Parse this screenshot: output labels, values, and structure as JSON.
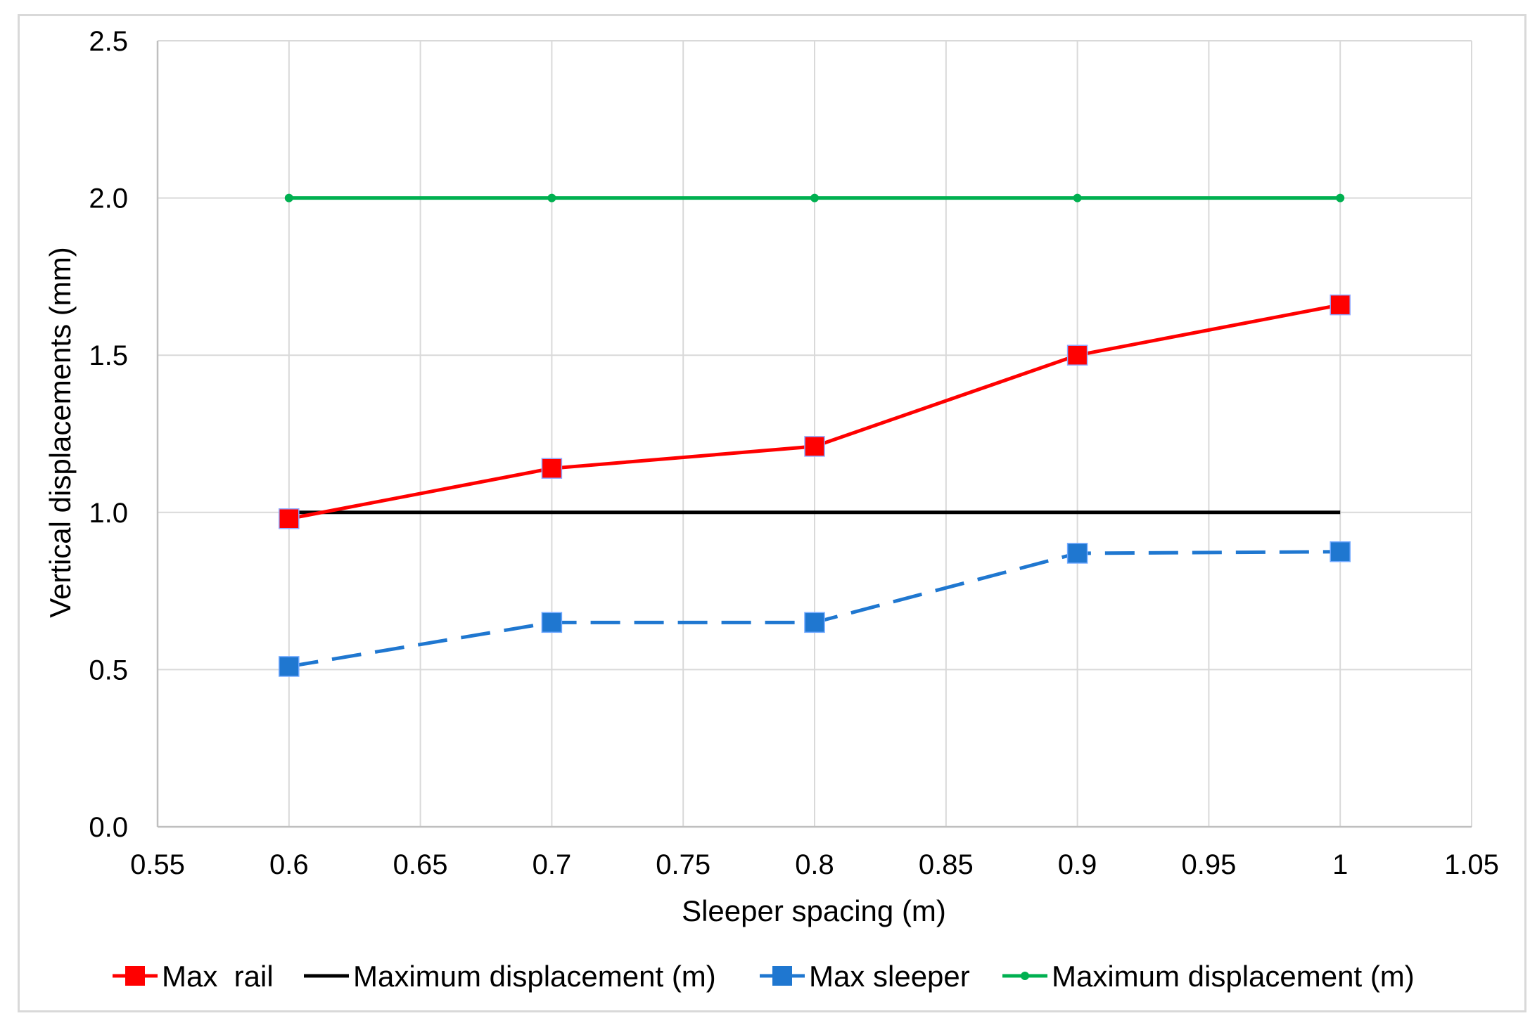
{
  "chart_data": {
    "type": "line",
    "title": "",
    "xlabel": "Sleeper spacing (m)",
    "ylabel": "Vertical displacements (mm)",
    "xlim": [
      0.55,
      1.05
    ],
    "ylim": [
      0.0,
      2.5
    ],
    "x_ticks": [
      0.55,
      0.6,
      0.65,
      0.7,
      0.75,
      0.8,
      0.85,
      0.9,
      0.95,
      1.0,
      1.05
    ],
    "x_tick_labels": [
      "0.55",
      "0.6",
      "0.65",
      "0.7",
      "0.75",
      "0.8",
      "0.85",
      "0.9",
      "0.95",
      "1",
      "1.05"
    ],
    "y_ticks": [
      0.0,
      0.5,
      1.0,
      1.5,
      2.0,
      2.5
    ],
    "y_tick_labels": [
      "0.0",
      "0.5",
      "1.0",
      "1.5",
      "2.0",
      "2.5"
    ],
    "grid": true,
    "legend_position": "bottom",
    "series": [
      {
        "name": "Max  rail",
        "color": "#ff0000",
        "style": "solid",
        "marker": "square",
        "x": [
          0.6,
          0.7,
          0.8,
          0.9,
          1.0
        ],
        "values": [
          0.98,
          1.14,
          1.21,
          1.5,
          1.66
        ]
      },
      {
        "name": "Maximum displacement (m)",
        "color": "#000000",
        "style": "solid",
        "marker": "none",
        "x": [
          0.6,
          1.0
        ],
        "values": [
          1.0,
          1.0
        ]
      },
      {
        "name": "Max sleeper",
        "color": "#1f77d0",
        "style": "dashed",
        "marker": "square",
        "x": [
          0.6,
          0.7,
          0.8,
          0.9,
          1.0
        ],
        "values": [
          0.51,
          0.65,
          0.65,
          0.87,
          0.875
        ]
      },
      {
        "name": "Maximum displacement (m)",
        "color": "#00b050",
        "style": "solid",
        "marker": "dot",
        "x": [
          0.6,
          0.7,
          0.8,
          0.9,
          1.0
        ],
        "values": [
          2.0,
          2.0,
          2.0,
          2.0,
          2.0
        ]
      }
    ]
  }
}
